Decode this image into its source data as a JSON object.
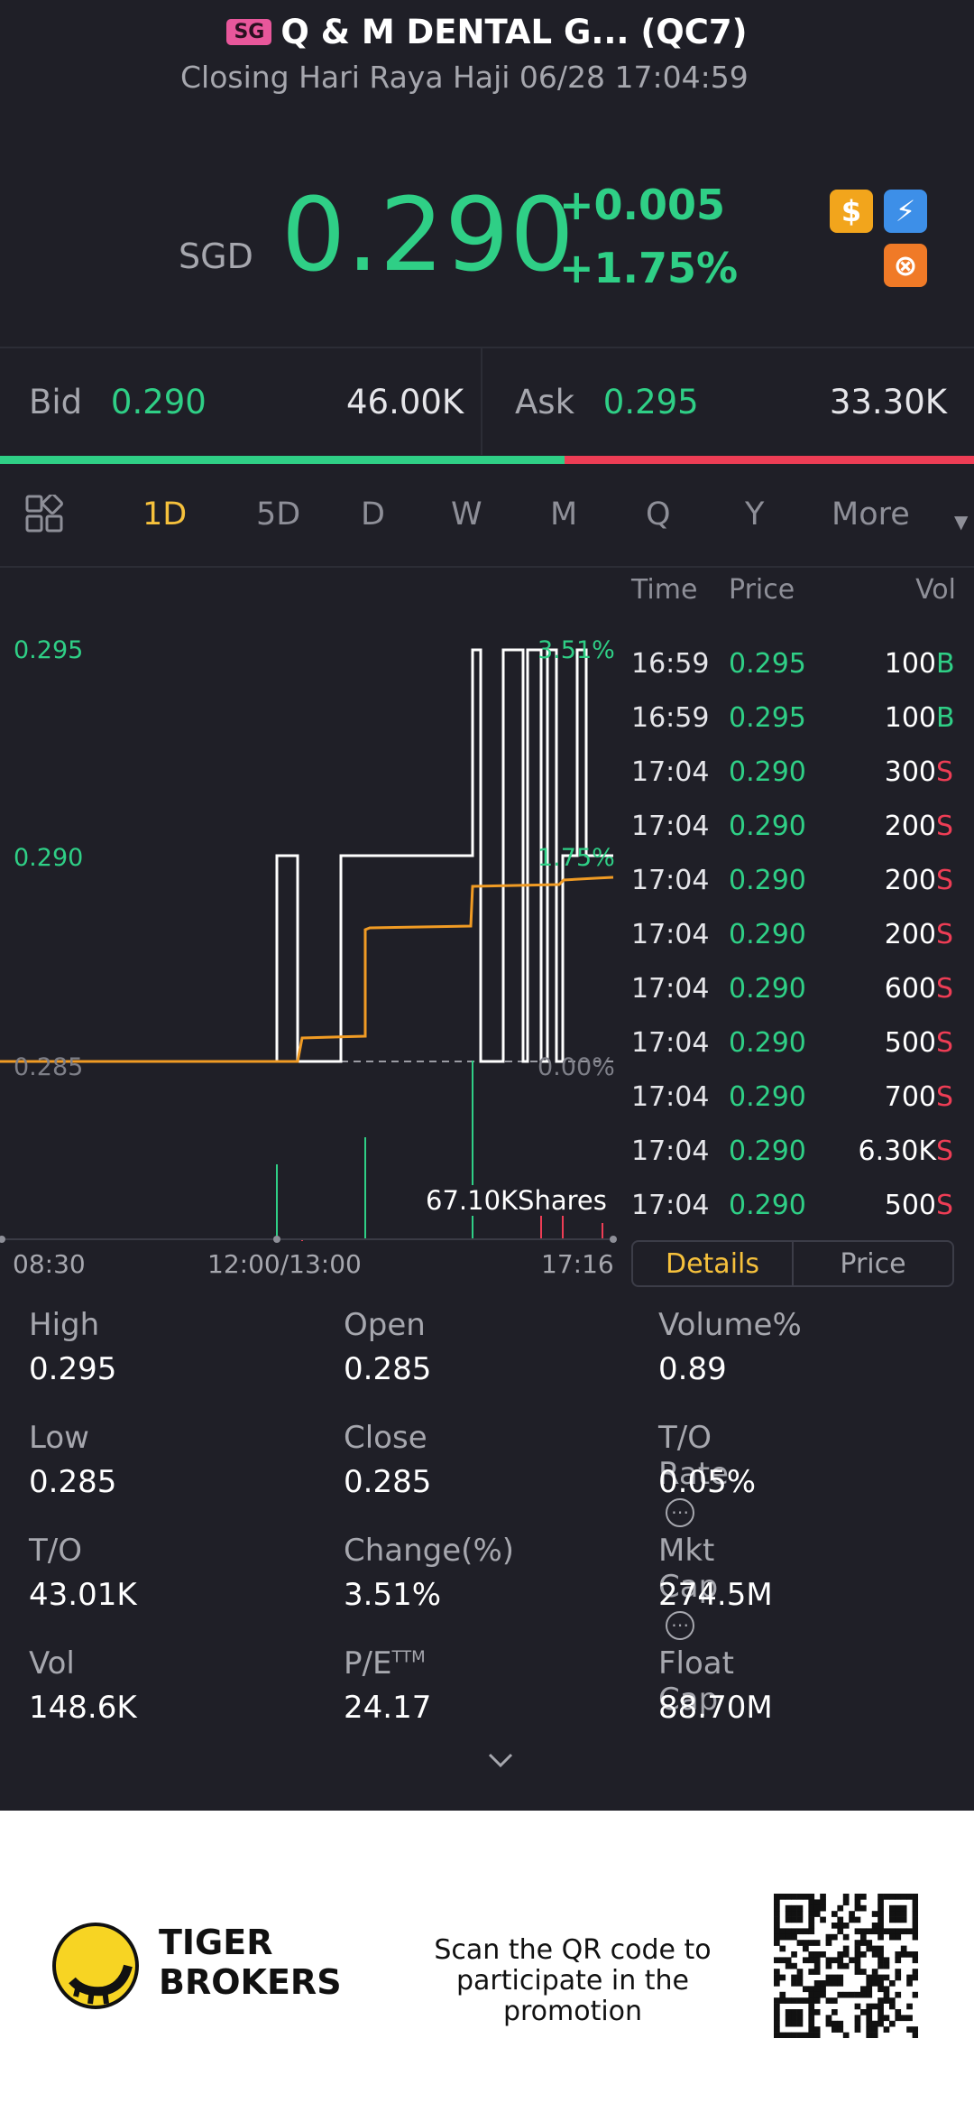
{
  "header": {
    "badge": "SG",
    "title": "Q & M DENTAL G... (QC7)",
    "subtitle": "Closing Hari Raya Haji 06/28 17:04:59 S"
  },
  "quote": {
    "currency": "SGD",
    "price": "0.290",
    "change": "+0.005",
    "change_pct": "+1.75%",
    "icons": [
      "dollar-icon",
      "lightning-icon",
      "chart-swap-icon"
    ]
  },
  "orderbook": {
    "bid_label": "Bid",
    "bid_price": "0.290",
    "bid_size": "46.00K",
    "ask_label": "Ask",
    "ask_price": "0.295",
    "ask_size": "33.30K",
    "bid_ratio": 0.58
  },
  "period_tabs": [
    "1D",
    "5D",
    "D",
    "W",
    "M",
    "Q",
    "Y",
    "More"
  ],
  "active_tab": "1D",
  "chart": {
    "y_labels": [
      "0.295",
      "0.290",
      "0.285"
    ],
    "pct_labels": [
      "3.51%",
      "1.75%",
      "0.00%"
    ],
    "x_labels": [
      "08:30",
      "12:00/13:00",
      "17:16"
    ],
    "volume_tooltip": "67.10KShares"
  },
  "chart_data": {
    "type": "line",
    "x": [
      "08:30",
      "11:40",
      "11:55",
      "12:00/13:00",
      "14:20",
      "15:50",
      "16:40",
      "17:16"
    ],
    "series": [
      {
        "values": [
          0.285,
          0.285,
          0.29,
          0.285,
          0.29,
          0.29,
          0.295,
          0.29
        ]
      }
    ],
    "ylim": [
      0.285,
      0.295
    ]
  },
  "trades": {
    "headers": [
      "Time",
      "Price",
      "Vol"
    ],
    "rows": [
      {
        "time": "16:59",
        "price": "0.295",
        "vol": "100",
        "side": "B"
      },
      {
        "time": "16:59",
        "price": "0.295",
        "vol": "100",
        "side": "B"
      },
      {
        "time": "17:04",
        "price": "0.290",
        "vol": "300",
        "side": "S"
      },
      {
        "time": "17:04",
        "price": "0.290",
        "vol": "200",
        "side": "S"
      },
      {
        "time": "17:04",
        "price": "0.290",
        "vol": "200",
        "side": "S"
      },
      {
        "time": "17:04",
        "price": "0.290",
        "vol": "200",
        "side": "S"
      },
      {
        "time": "17:04",
        "price": "0.290",
        "vol": "600",
        "side": "S"
      },
      {
        "time": "17:04",
        "price": "0.290",
        "vol": "500",
        "side": "S"
      },
      {
        "time": "17:04",
        "price": "0.290",
        "vol": "700",
        "side": "S"
      },
      {
        "time": "17:04",
        "price": "0.290",
        "vol": "6.30K",
        "side": "S"
      },
      {
        "time": "17:04",
        "price": "0.290",
        "vol": "500",
        "side": "S"
      }
    ],
    "details_label": "Details",
    "price_label": "Price"
  },
  "stats": [
    [
      {
        "k": "High",
        "v": "0.295"
      },
      {
        "k": "Open",
        "v": "0.285"
      },
      {
        "k": "Volume%",
        "v": "0.89"
      }
    ],
    [
      {
        "k": "Low",
        "v": "0.285"
      },
      {
        "k": "Close",
        "v": "0.285"
      },
      {
        "k": "T/O Rate",
        "v": "0.05%"
      }
    ],
    [
      {
        "k": "T/O",
        "v": "43.01K"
      },
      {
        "k": "Change(%)",
        "v": "3.51%"
      },
      {
        "k": "Mkt Cap",
        "v": "274.5M"
      }
    ],
    [
      {
        "k": "Vol",
        "v": "148.6K"
      },
      {
        "k": "P/E",
        "v": "24.17"
      },
      {
        "k": "Float Cap",
        "v": "88.70M"
      }
    ]
  ],
  "pe_suffix": "TTM",
  "footer": {
    "brand_line1": "TIGER",
    "brand_line2": "BROKERS",
    "promo_line1": "Scan the QR code to",
    "promo_line2": "participate in the promotion"
  }
}
